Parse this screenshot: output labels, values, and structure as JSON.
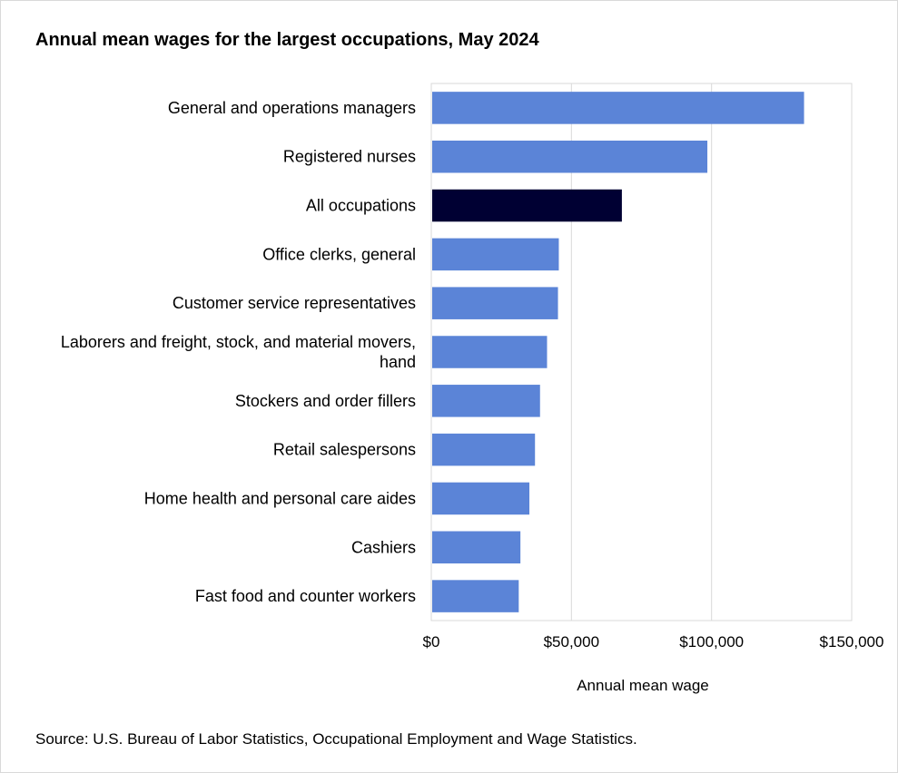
{
  "chart_data": {
    "type": "bar",
    "orientation": "horizontal",
    "title": "Annual mean wages for the largest occupations, May 2024",
    "xlabel": "Annual mean wage",
    "ylabel": "",
    "categories": [
      "General and operations managers",
      "Registered nurses",
      "All occupations",
      "Office clerks, general",
      "Customer service representatives",
      [
        "Laborers and freight, stock, and material movers,",
        "hand"
      ],
      "Stockers and order fillers",
      "Retail salespersons",
      "Home health and personal care aides",
      "Cashiers",
      "Fast food and counter workers"
    ],
    "values": [
      133000,
      98500,
      68000,
      45500,
      45200,
      41300,
      38800,
      37000,
      35000,
      31800,
      31200
    ],
    "xlim": [
      0,
      150000
    ],
    "xticks": [
      0,
      50000,
      100000,
      150000
    ],
    "xtick_labels": [
      "$0",
      "$50,000",
      "$100,000",
      "$150,000"
    ],
    "grid": "vertical",
    "legend": "none",
    "colors": {
      "bar": "#5b84d7",
      "highlight_bar": "#000033",
      "highlight_category": "All occupations",
      "gridline": "#d9d9d9",
      "frame": "#d9d9d9"
    },
    "source": "Source: U.S. Bureau of Labor Statistics, Occupational Employment and Wage Statistics."
  }
}
